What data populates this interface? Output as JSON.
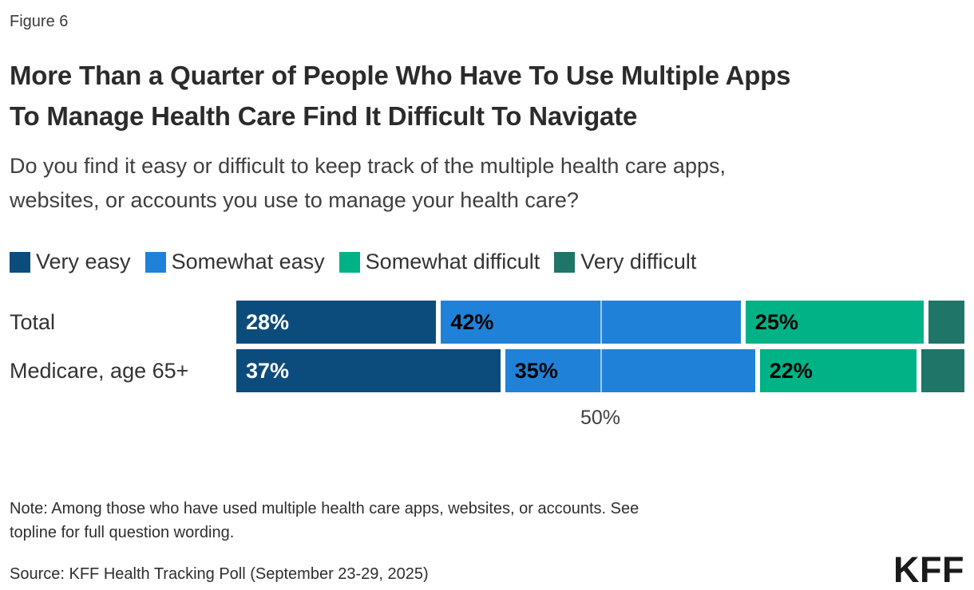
{
  "figure_label": "Figure 6",
  "title_lines": [
    "More Than a Quarter of People Who Have To Use Multiple Apps",
    "To Manage Health Care Find It Difficult To Navigate"
  ],
  "subtitle_lines": [
    "Do you find it easy or difficult to keep track of the multiple health care apps,",
    "websites, or accounts you use to manage your health care?"
  ],
  "chart_data": {
    "type": "bar",
    "stacked": true,
    "orientation": "horizontal",
    "categories": [
      "Total",
      "Medicare, age 65+"
    ],
    "series": [
      {
        "name": "Very easy",
        "color": "#0C4C7C",
        "values": [
          28,
          37
        ],
        "labels": [
          "28%",
          "37%"
        ],
        "label_color": "#FFFFFF"
      },
      {
        "name": "Somewhat easy",
        "color": "#1F82D8",
        "values": [
          42,
          35
        ],
        "labels": [
          "42%",
          "35%"
        ],
        "label_color": "#000000"
      },
      {
        "name": "Somewhat difficult",
        "color": "#00B286",
        "values": [
          25,
          22
        ],
        "labels": [
          "25%",
          "22%"
        ],
        "label_color": "#000000"
      },
      {
        "name": "Very difficult",
        "color": "#1F7567",
        "values": [
          5,
          6
        ],
        "labels": [
          "",
          ""
        ],
        "label_color": "#000000"
      }
    ],
    "xlim": [
      0,
      100
    ],
    "gridline_at": 50,
    "axis_tick_label": "50%",
    "legend_position": "top",
    "grid": "single vertical gridline at 50%"
  },
  "note_lines": [
    "Note: Among those who have used multiple health care apps, websites, or accounts. See",
    "topline for full question wording."
  ],
  "source": "Source: KFF Health Tracking Poll (September 23-29, 2025)",
  "logo": "KFF"
}
